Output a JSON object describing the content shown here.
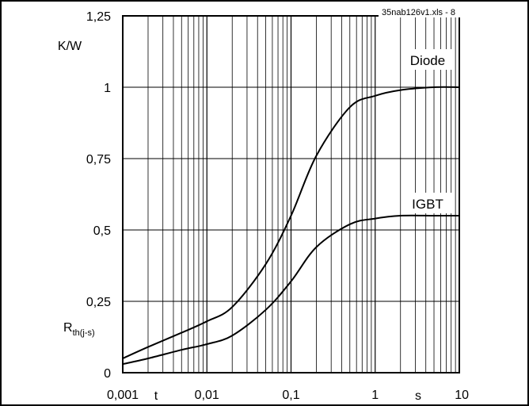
{
  "chart_data": {
    "type": "line",
    "file_label": "35nab126v1.xls - 8",
    "y_unit": "K/W",
    "y_symbol": "R",
    "y_symbol_sub": "th(j-s)",
    "x_symbol": "t",
    "x_unit": "s",
    "x_scale": "log",
    "xlim": [
      0.001,
      10
    ],
    "ylim": [
      0,
      1.25
    ],
    "grid": true,
    "x_ticks": [
      "0,001",
      "0,01",
      "0,1",
      "1",
      "10"
    ],
    "y_ticks": [
      "0",
      "0,25",
      "0,5",
      "0,75",
      "1",
      "1,25"
    ],
    "series": [
      {
        "name": "Diode",
        "x": [
          0.001,
          0.002,
          0.005,
          0.01,
          0.02,
          0.05,
          0.1,
          0.2,
          0.5,
          1,
          2,
          5,
          10
        ],
        "y": [
          0.05,
          0.09,
          0.14,
          0.18,
          0.23,
          0.38,
          0.55,
          0.76,
          0.93,
          0.97,
          0.99,
          1.0,
          1.0
        ]
      },
      {
        "name": "IGBT",
        "x": [
          0.001,
          0.002,
          0.005,
          0.01,
          0.02,
          0.05,
          0.1,
          0.2,
          0.5,
          1,
          2,
          5,
          10
        ],
        "y": [
          0.03,
          0.05,
          0.08,
          0.1,
          0.13,
          0.22,
          0.32,
          0.44,
          0.52,
          0.54,
          0.55,
          0.55,
          0.55
        ]
      }
    ]
  }
}
